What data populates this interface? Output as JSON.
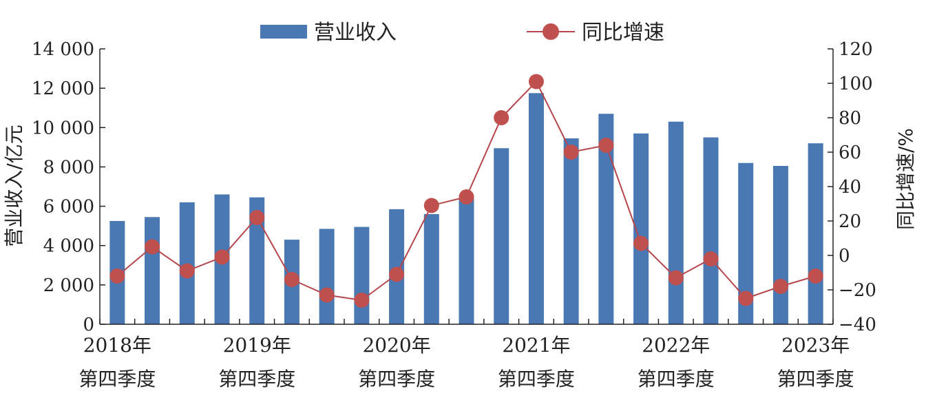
{
  "chart_data": {
    "type": "bar+line",
    "title": "",
    "x_labels": [
      {
        "index": 0,
        "line1": "2018年",
        "line2": "第四季度"
      },
      {
        "index": 4,
        "line1": "2019年",
        "line2": "第四季度"
      },
      {
        "index": 8,
        "line1": "2020年",
        "line2": "第四季度"
      },
      {
        "index": 12,
        "line1": "2021年",
        "line2": "第四季度"
      },
      {
        "index": 16,
        "line1": "2022年",
        "line2": "第四季度"
      },
      {
        "index": 20,
        "line1": "2023年",
        "line2": "第四季度"
      }
    ],
    "series": [
      {
        "name": "营业收入",
        "type": "bar",
        "axis": "left",
        "color": "#4a78b3",
        "values": [
          5250,
          5450,
          6200,
          6600,
          6450,
          4300,
          4850,
          4950,
          5850,
          5600,
          6400,
          8950,
          11750,
          9450,
          10700,
          9700,
          10300,
          9500,
          8200,
          8050,
          9200
        ]
      },
      {
        "name": "同比增速",
        "type": "line",
        "axis": "right",
        "color": "#c0504d",
        "line_color": "#b5454a",
        "values": [
          -12,
          5,
          -9,
          -1,
          22,
          -14,
          -23,
          -26,
          -11,
          29,
          34,
          80,
          101,
          60,
          64,
          7,
          -13,
          -2,
          -25,
          -18,
          -12
        ]
      }
    ],
    "y_left": {
      "label": "营业收入/亿元",
      "min": 0,
      "max": 14000,
      "ticks": [
        0,
        2000,
        4000,
        6000,
        8000,
        10000,
        12000,
        14000
      ],
      "tick_labels": [
        "0",
        "2 000",
        "4 000",
        "6 000",
        "8 000",
        "10 000",
        "12 000",
        "14 000"
      ]
    },
    "y_right": {
      "label": "同比增速/%",
      "min": -40,
      "max": 120,
      "ticks": [
        -40,
        -20,
        0,
        20,
        40,
        60,
        80,
        100,
        120
      ],
      "tick_labels": [
        "−40",
        "−20",
        "0",
        "20",
        "40",
        "60",
        "80",
        "100",
        "120"
      ]
    },
    "legend": {
      "placement": "top"
    },
    "grid": false
  }
}
